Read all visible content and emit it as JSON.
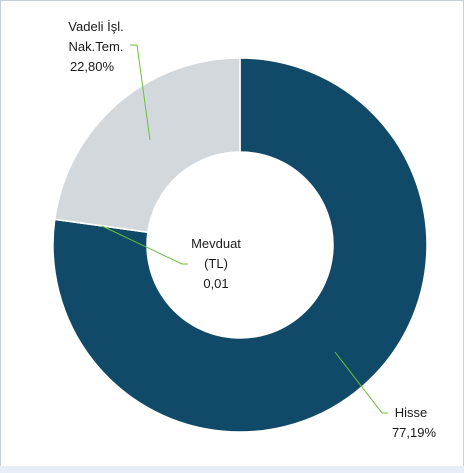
{
  "chart_data": {
    "type": "pie",
    "variant": "donut",
    "title": "",
    "slices": [
      {
        "name": "Hisse",
        "value": 77.19,
        "label": "77,19%",
        "color": "#114a68"
      },
      {
        "name": "Mevduat (TL)",
        "value": 0.01,
        "label": "0,01",
        "color": "#ffffff"
      },
      {
        "name": "Vadeli İşl. Nak.Tem.",
        "value": 22.8,
        "label": "22,80%",
        "color": "#d3d8dd"
      }
    ],
    "labels": {
      "vadeli_line1": "Vadeli İşl.",
      "vadeli_line2": "Nak.Tem.",
      "vadeli_value": "22,80%",
      "mevduat_line1": "Mevduat",
      "mevduat_line2": "(TL)",
      "mevduat_value": "0,01",
      "hisse_line1": "Hisse",
      "hisse_value": "77,19%"
    },
    "legend": "none",
    "leader_line_color": "#6dbf3a"
  }
}
